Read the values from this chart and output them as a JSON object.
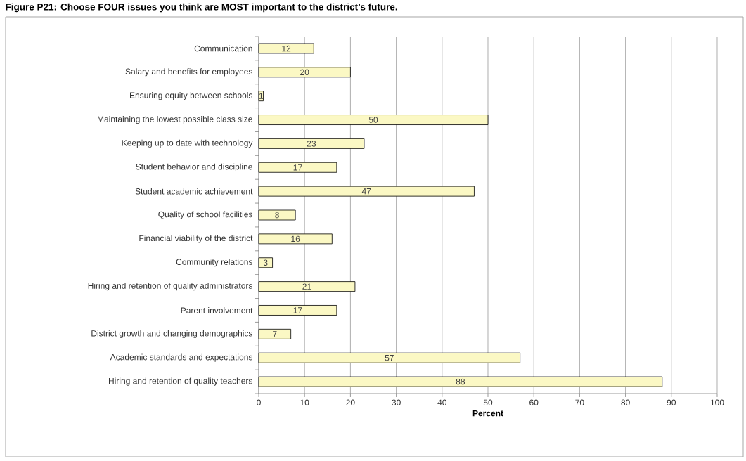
{
  "chart_data": {
    "type": "bar",
    "orientation": "horizontal",
    "title": "Figure P21: Choose FOUR issues you think are MOST important to the district’s future.",
    "xlabel": "Percent",
    "categories": [
      "Communication",
      "Salary and benefits for employees",
      "Ensuring equity between schools",
      "Maintaining the lowest possible class size",
      "Keeping up to date with technology",
      "Student behavior and discipline",
      "Student academic achievement",
      "Quality of school facilities",
      "Financial viability of the district",
      "Community relations",
      "Hiring and retention of quality administrators",
      "Parent involvement",
      "District growth and changing demographics",
      "Academic standards and expectations",
      "Hiring and retention of quality teachers"
    ],
    "values": [
      12,
      20,
      1,
      50,
      23,
      17,
      47,
      8,
      16,
      3,
      21,
      17,
      7,
      57,
      88
    ],
    "color": "#fbf8c4",
    "xlim": [
      0,
      100
    ],
    "xticks": [
      0,
      10,
      20,
      30,
      40,
      50,
      60,
      70,
      80,
      90,
      100
    ],
    "grid": "x",
    "data_labels": true
  }
}
